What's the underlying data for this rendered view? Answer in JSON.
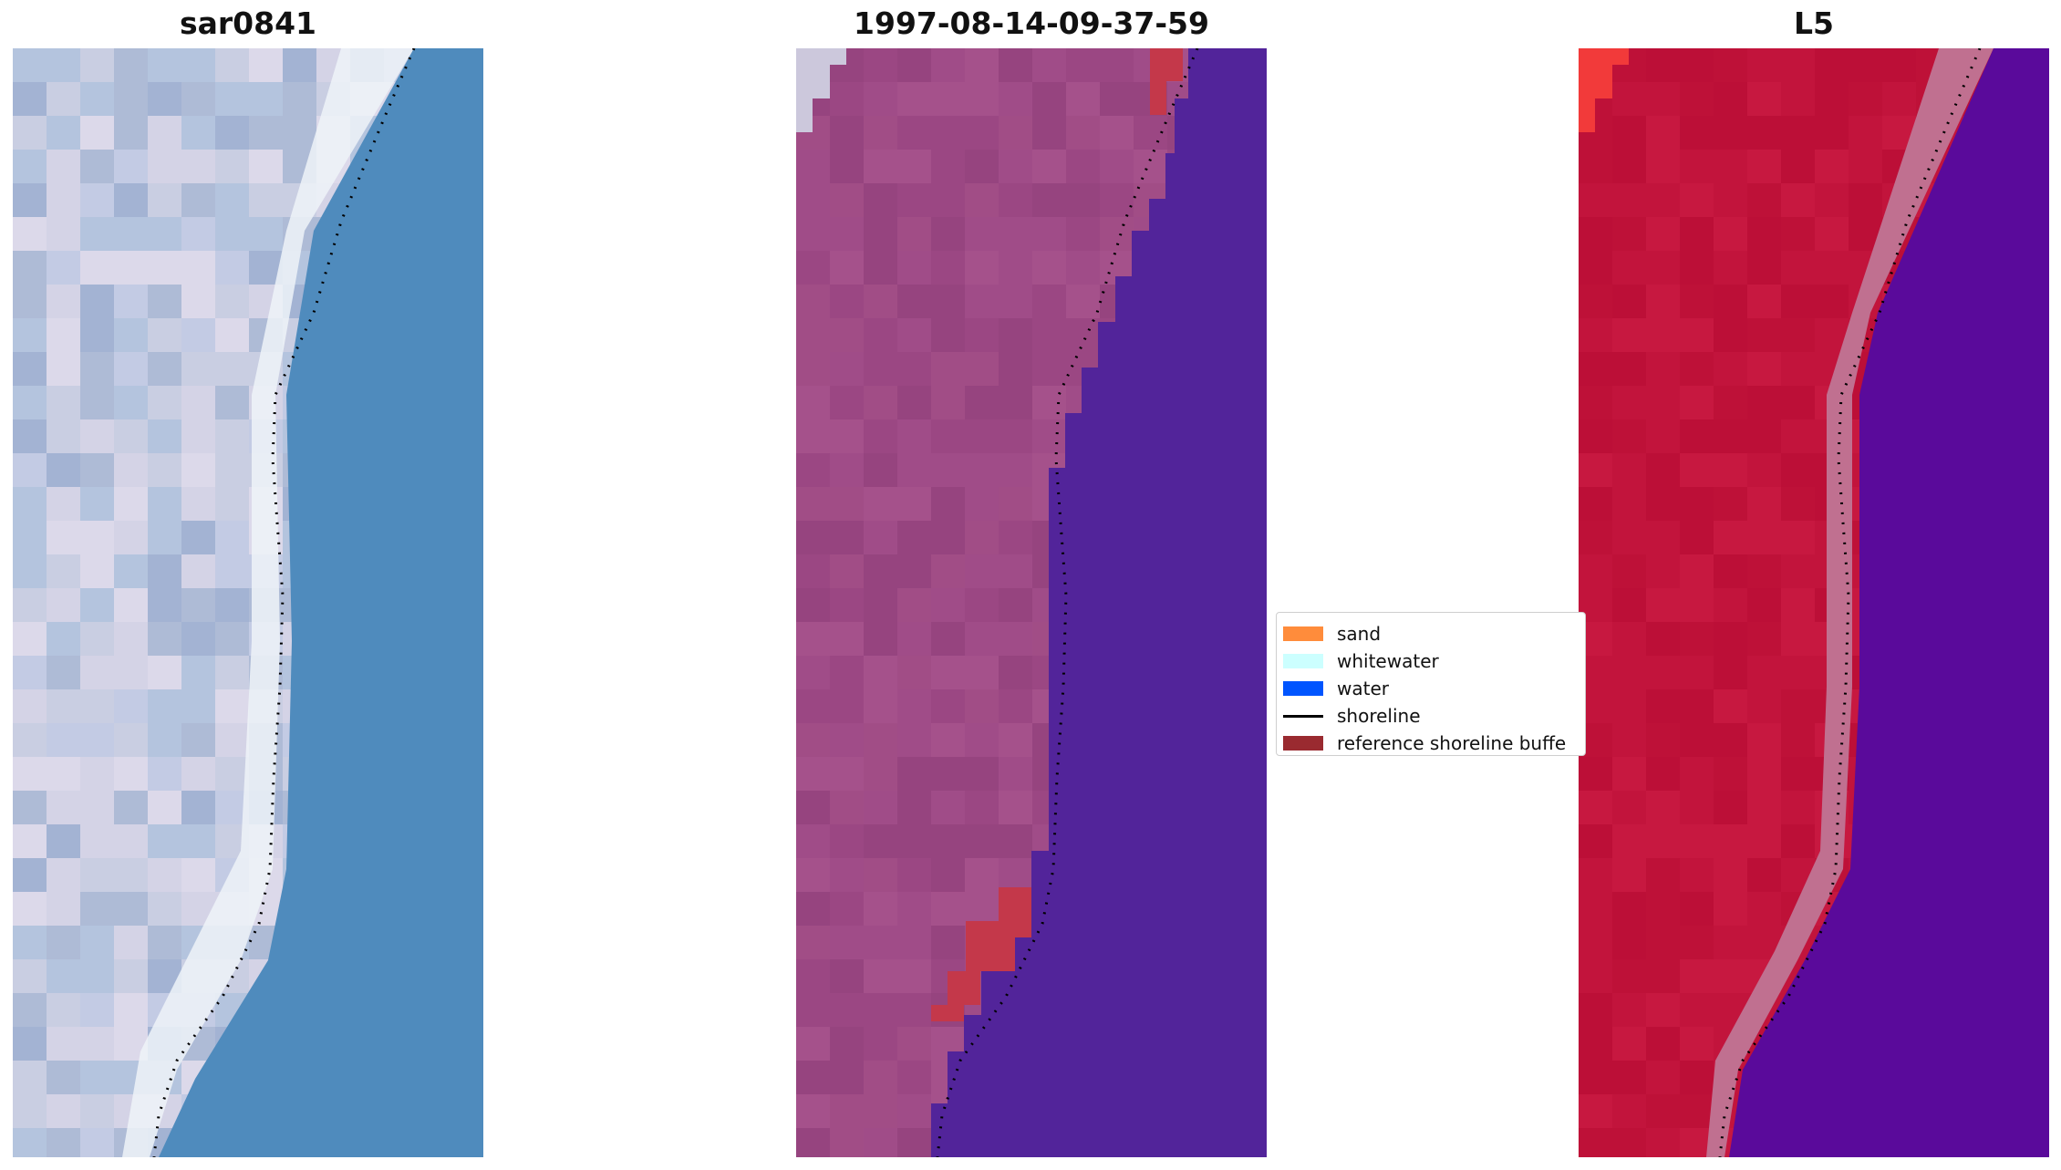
{
  "panels": [
    {
      "title": "sar0841",
      "kind": "rgb"
    },
    {
      "title": "1997-08-14-09-37-59",
      "kind": "classified"
    },
    {
      "title": "L5",
      "kind": "ndwi"
    }
  ],
  "legend": {
    "items": [
      {
        "label": "sand",
        "color": "#ff8c3b",
        "type": "patch"
      },
      {
        "label": "whitewater",
        "color": "#ccffff",
        "type": "patch"
      },
      {
        "label": "water",
        "color": "#0055ff",
        "type": "patch"
      },
      {
        "label": "shoreline",
        "color": "#000000",
        "type": "line"
      },
      {
        "label": "reference shoreline buffe",
        "color": "#9a2a30",
        "type": "patch"
      }
    ]
  },
  "colors": {
    "ocean": "#4f8bbd",
    "land_rgb": "#b8c3da",
    "surf_white": "#eef3f8",
    "classified_land": "#a04d88",
    "classified_water": "#52249a",
    "buffer_red": "#c4384a",
    "ndwi_land": "#c2143c",
    "ndwi_water": "#5a0a9b",
    "ndwi_edge": "#c07090"
  }
}
